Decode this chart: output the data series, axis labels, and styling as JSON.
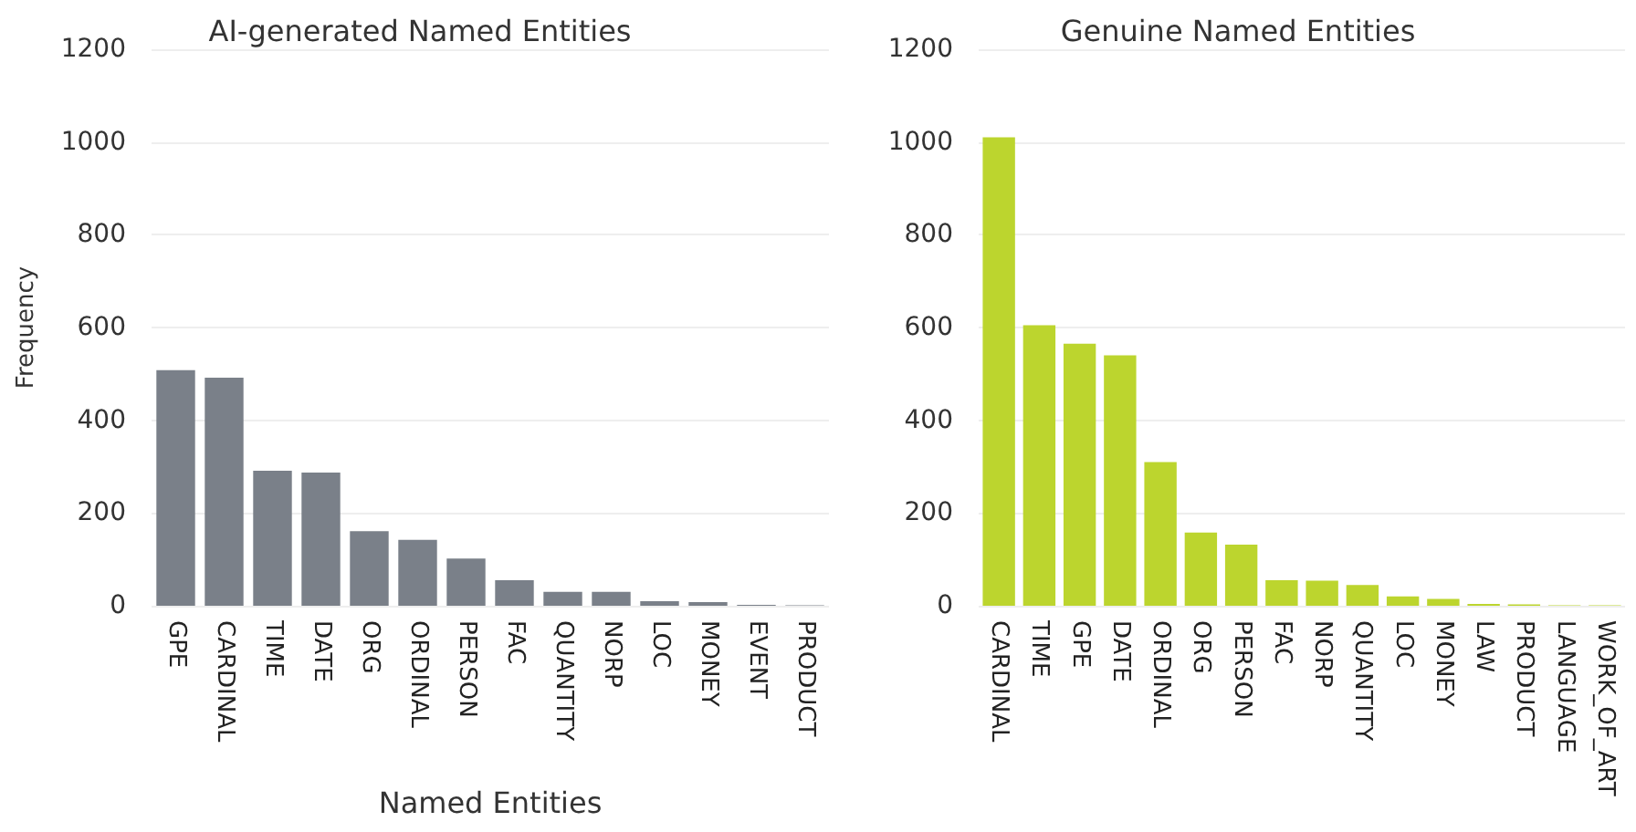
{
  "chart_data": [
    {
      "type": "bar",
      "title": "AI-generated Named Entities",
      "xlabel": "Named Entities",
      "ylabel": "Frequency",
      "categories": [
        "GPE",
        "CARDINAL",
        "TIME",
        "DATE",
        "ORG",
        "ORDINAL",
        "PERSON",
        "FAC",
        "QUANTITY",
        "NORP",
        "LOC",
        "MONEY",
        "EVENT",
        "PRODUCT"
      ],
      "values": [
        508,
        492,
        291,
        287,
        161,
        142,
        102,
        55,
        30,
        30,
        10,
        8,
        2,
        1
      ],
      "color": "#7a8089",
      "ylim": [
        0,
        1200
      ],
      "yticks": [
        0,
        200,
        400,
        600,
        800,
        1000,
        1200
      ],
      "grid": "y"
    },
    {
      "type": "bar",
      "title": "Genuine Named Entities",
      "categories": [
        "CARDINAL",
        "TIME",
        "GPE",
        "DATE",
        "ORDINAL",
        "ORG",
        "PERSON",
        "FAC",
        "NORP",
        "QUANTITY",
        "LOC",
        "MONEY",
        "LAW",
        "PRODUCT",
        "LANGUAGE",
        "WORK_OF_ART"
      ],
      "values": [
        1010,
        605,
        565,
        540,
        310,
        158,
        132,
        55,
        54,
        45,
        20,
        15,
        4,
        3,
        1,
        1
      ],
      "color": "#bcd52e",
      "ylim": [
        0,
        1200
      ],
      "yticks": [
        0,
        200,
        400,
        600,
        800,
        1000,
        1200
      ],
      "grid": "y"
    }
  ]
}
